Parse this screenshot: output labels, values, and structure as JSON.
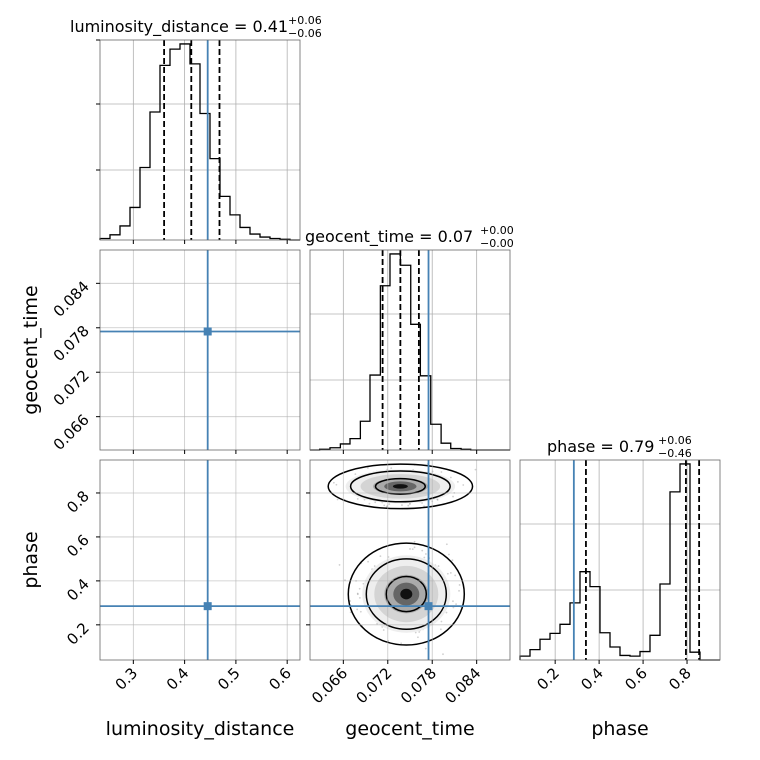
{
  "chart_data": {
    "type": "corner",
    "parameters": [
      "luminosity_distance",
      "geocent_time",
      "phase"
    ],
    "truth": {
      "luminosity_distance": 0.445,
      "geocent_time": 0.0775,
      "phase": 0.285
    },
    "truth_color": "#4682b4",
    "ranges": {
      "luminosity_distance": [
        0.235,
        0.625
      ],
      "geocent_time": [
        0.0615,
        0.0885
      ],
      "phase": [
        0.04,
        0.95
      ]
    },
    "ticks": {
      "luminosity_distance": [
        0.3,
        0.4,
        0.5,
        0.6
      ],
      "geocent_time": [
        0.066,
        0.072,
        0.078,
        0.084
      ],
      "phase": [
        0.2,
        0.4,
        0.6,
        0.8
      ]
    },
    "tick_labels": {
      "luminosity_distance": [
        "0.3",
        "0.4",
        "0.5",
        "0.6"
      ],
      "geocent_time": [
        "0.066",
        "0.072",
        "0.078",
        "0.084"
      ],
      "phase": [
        "0.2",
        "0.4",
        "0.6",
        "0.8"
      ]
    },
    "axis_labels": {
      "luminosity_distance": "luminosity_distance",
      "geocent_time": "geocent_time",
      "phase": "phase"
    },
    "titles": {
      "luminosity_distance": {
        "text": "luminosity_distance = 0.41",
        "plus": "+0.06",
        "minus": "−0.06"
      },
      "geocent_time": {
        "text": "geocent_time = 0.07",
        "plus": "+0.00",
        "minus": "−0.00"
      },
      "phase": {
        "text": "phase = 0.79",
        "plus": "+0.06",
        "minus": "−0.46"
      }
    },
    "quantiles": {
      "luminosity_distance": [
        0.36,
        0.413,
        0.468
      ],
      "geocent_time": [
        0.0713,
        0.0737,
        0.0762
      ],
      "phase": [
        0.34,
        0.795,
        0.855
      ]
    },
    "histograms": {
      "luminosity_distance": {
        "edges": [
          0.235,
          0.2545,
          0.274,
          0.2935,
          0.313,
          0.3325,
          0.352,
          0.3715,
          0.391,
          0.4105,
          0.43,
          0.4495,
          0.469,
          0.4885,
          0.508,
          0.5275,
          0.547,
          0.5665,
          0.586,
          0.6055,
          0.625
        ],
        "counts": [
          2,
          7,
          19,
          44,
          98,
          173,
          236,
          258,
          265,
          238,
          171,
          110,
          59,
          34,
          17,
          8,
          4,
          2,
          1,
          0
        ]
      },
      "geocent_time": {
        "edges": [
          0.0615,
          0.0628,
          0.0642,
          0.0656,
          0.0669,
          0.0683,
          0.0696,
          0.071,
          0.0723,
          0.0737,
          0.0751,
          0.0764,
          0.0778,
          0.0792,
          0.0805,
          0.0819,
          0.0832,
          0.0846,
          0.0859,
          0.0873,
          0.0885
        ],
        "counts": [
          0,
          1,
          3,
          8,
          15,
          38,
          99,
          217,
          259,
          244,
          166,
          98,
          34,
          9,
          2,
          1,
          0,
          0,
          0,
          0
        ]
      },
      "phase": {
        "edges": [
          0.04,
          0.0855,
          0.131,
          0.1765,
          0.222,
          0.2675,
          0.313,
          0.3585,
          0.404,
          0.4495,
          0.495,
          0.5405,
          0.586,
          0.6315,
          0.677,
          0.7225,
          0.768,
          0.8135,
          0.859,
          0.9045,
          0.95
        ],
        "counts": [
          6,
          16,
          32,
          41,
          55,
          88,
          136,
          113,
          42,
          20,
          7,
          6,
          13,
          38,
          117,
          259,
          302,
          12,
          0,
          0
        ]
      }
    },
    "grid": true
  }
}
